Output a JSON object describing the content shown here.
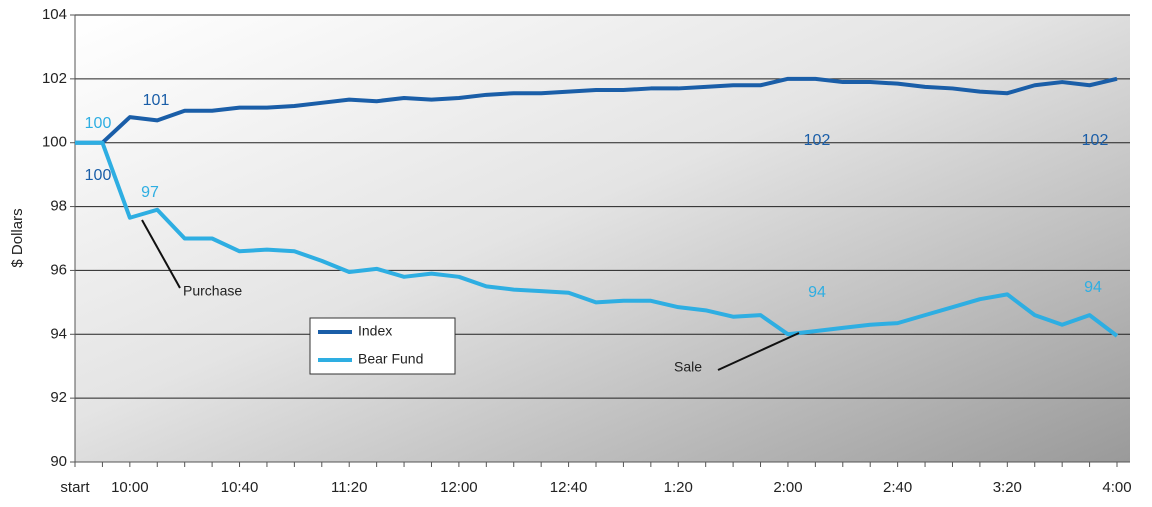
{
  "chart_data": {
    "type": "line",
    "ylabel": "$ Dollars",
    "categories": [
      "start",
      null,
      "10:00",
      null,
      null,
      null,
      "10:40",
      null,
      null,
      null,
      "11:20",
      null,
      null,
      null,
      "12:00",
      null,
      null,
      null,
      "12:40",
      null,
      null,
      null,
      "1:20",
      null,
      null,
      null,
      "2:00",
      null,
      null,
      null,
      "2:40",
      null,
      null,
      null,
      "3:20",
      null,
      null,
      null,
      "4:00"
    ],
    "series": [
      {
        "name": "Index",
        "color": "#1a5ea8",
        "values": [
          100,
          100,
          100.8,
          100.7,
          101.0,
          101.0,
          101.1,
          101.1,
          101.15,
          101.25,
          101.35,
          101.3,
          101.4,
          101.35,
          101.4,
          101.5,
          101.55,
          101.55,
          101.6,
          101.65,
          101.65,
          101.7,
          101.7,
          101.75,
          101.8,
          101.8,
          102.0,
          102.0,
          101.9,
          101.9,
          101.85,
          101.75,
          101.7,
          101.6,
          101.55,
          101.8,
          101.9,
          101.8,
          102.0
        ]
      },
      {
        "name": "Bear Fund",
        "color": "#2eaee2",
        "values": [
          100,
          100,
          97.65,
          97.9,
          97.0,
          97.0,
          96.6,
          96.65,
          96.6,
          96.3,
          95.95,
          96.05,
          95.8,
          95.9,
          95.8,
          95.5,
          95.4,
          95.35,
          95.3,
          95.0,
          95.05,
          95.05,
          94.85,
          94.75,
          94.55,
          94.6,
          94.0,
          94.1,
          94.2,
          94.3,
          94.35,
          94.6,
          94.85,
          95.1,
          95.25,
          94.6,
          94.3,
          94.6,
          93.95
        ]
      }
    ],
    "annotations": [
      "100",
      "101",
      "102",
      "102",
      "100",
      "97",
      "94",
      "94",
      "Purchase",
      "Sale"
    ],
    "ylim": [
      90,
      104
    ],
    "yticks": [
      90,
      92,
      94,
      96,
      98,
      100,
      102,
      104
    ],
    "grid": true,
    "legend": "left"
  }
}
